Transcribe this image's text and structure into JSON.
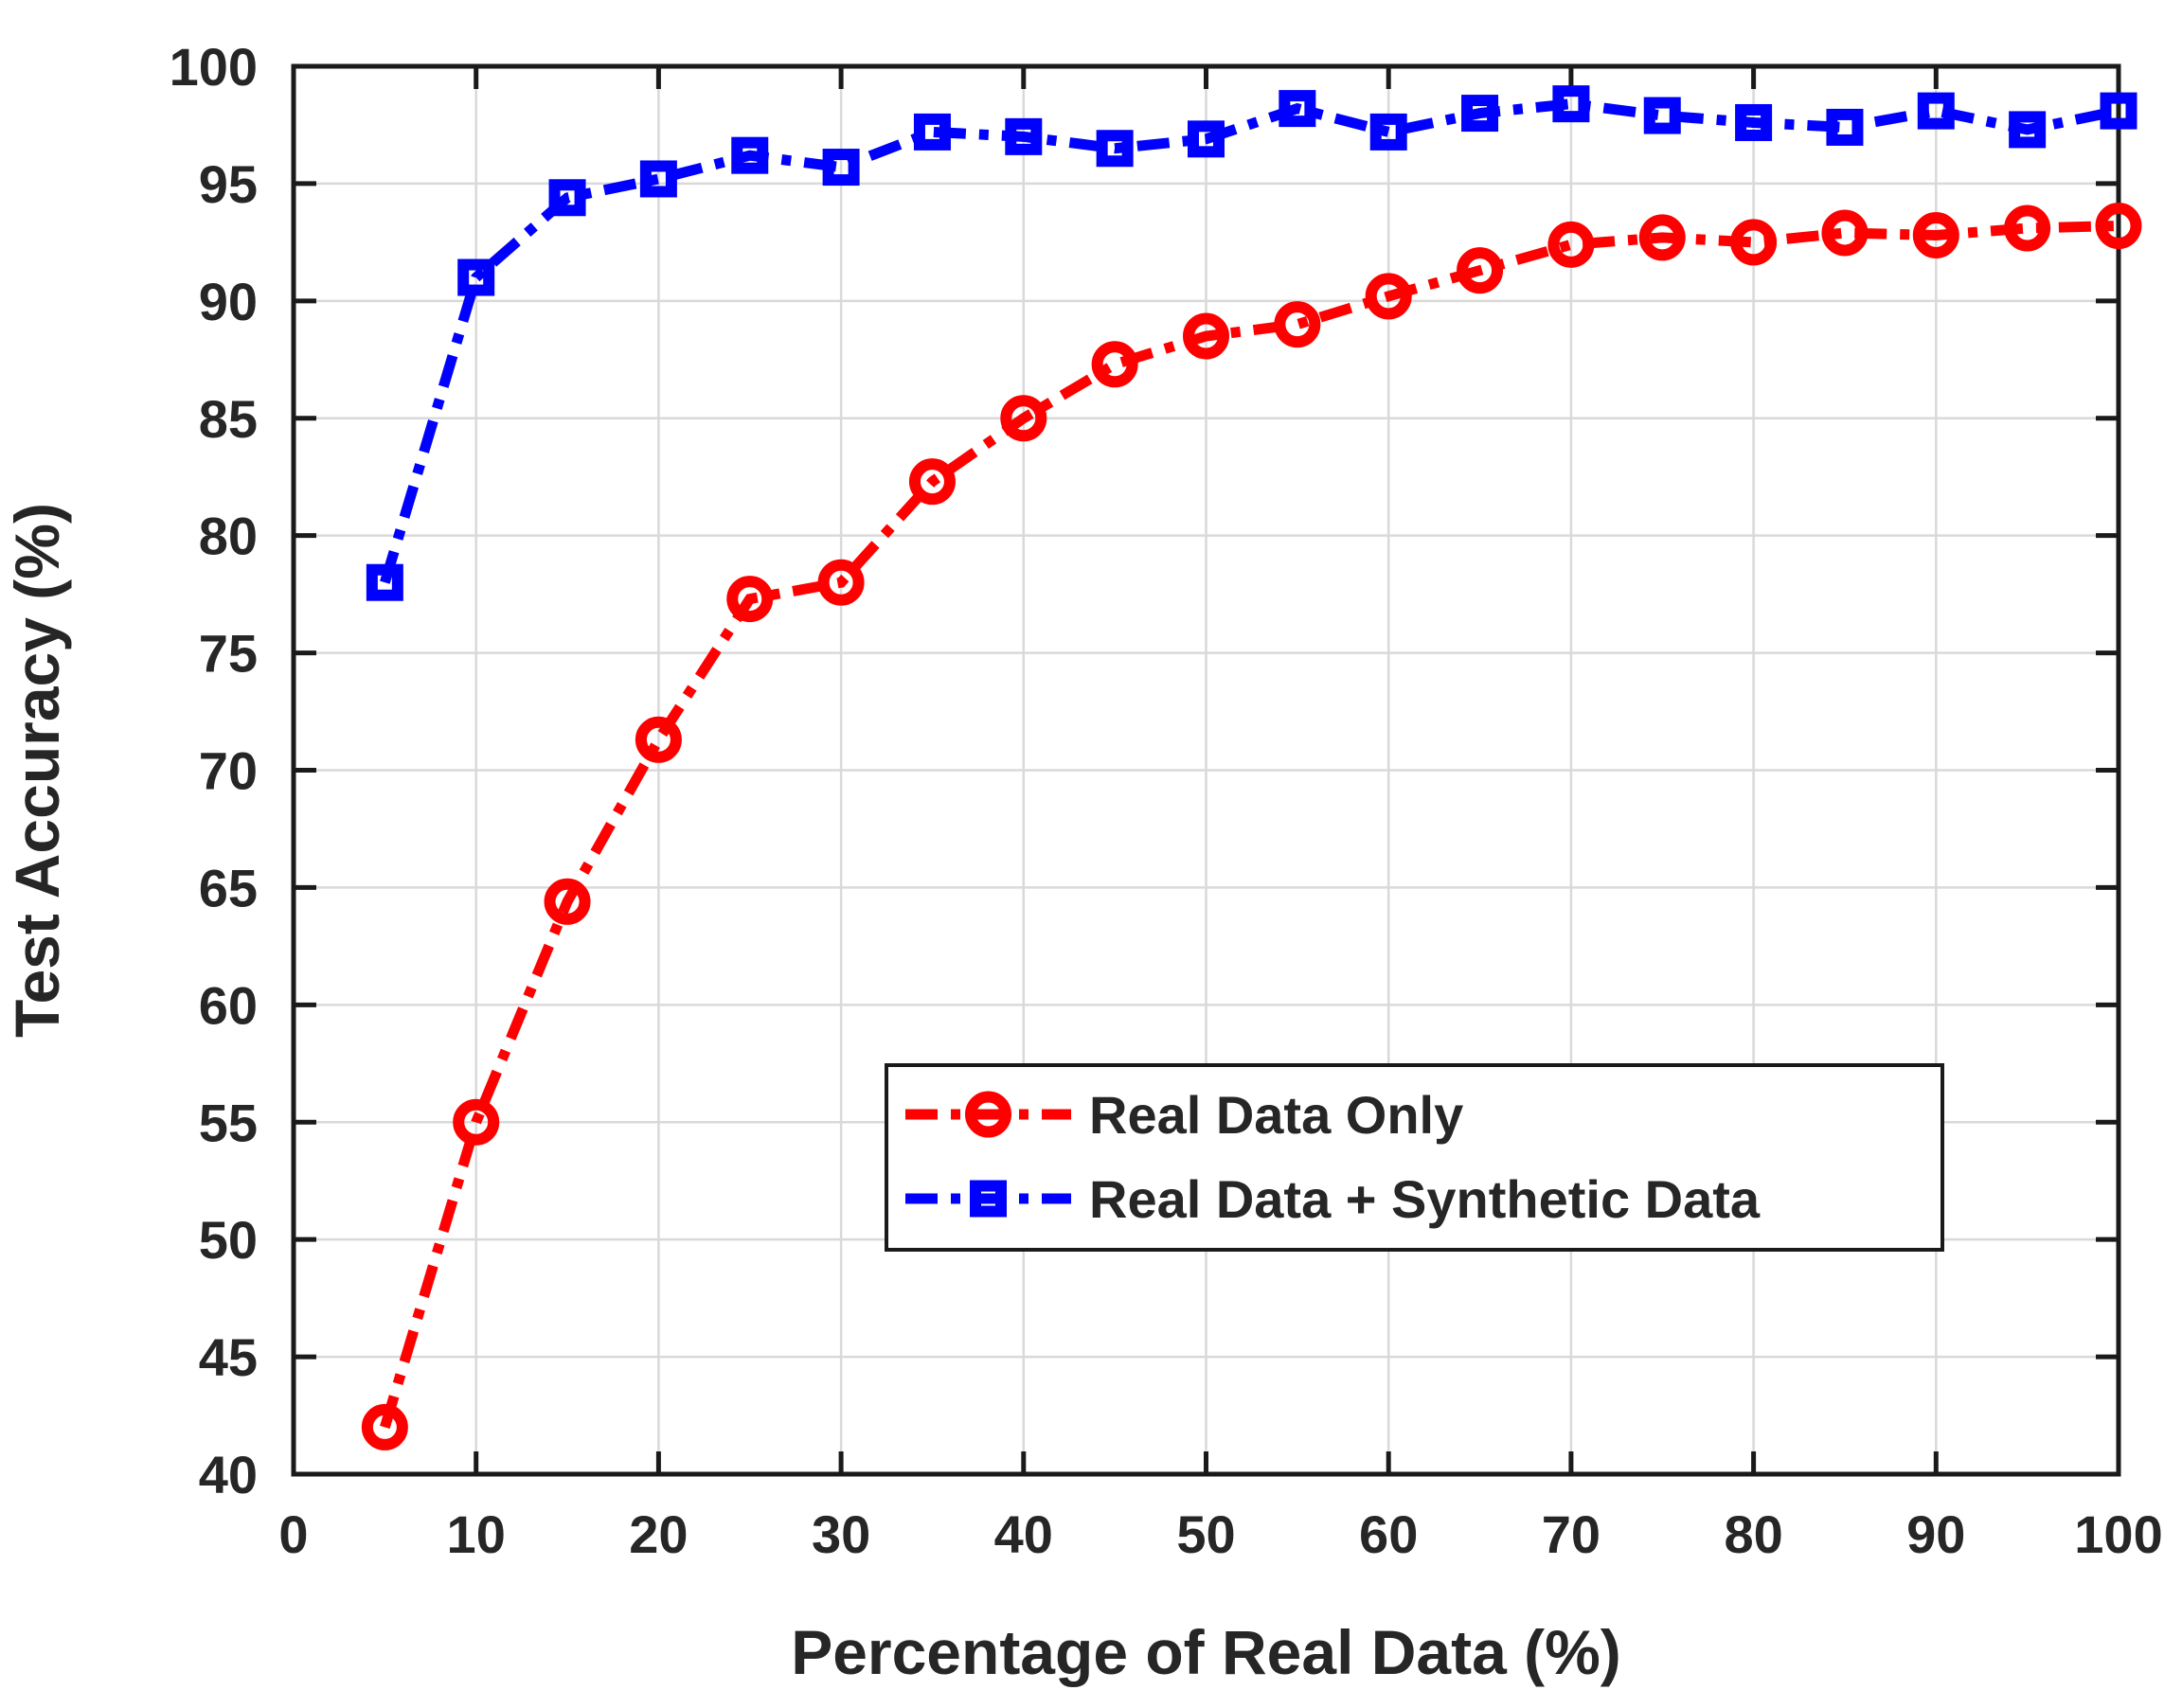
{
  "chart_data": {
    "type": "line",
    "title": "",
    "xlabel": "Percentage of Real Data (%)",
    "ylabel": "Test Accuracy (%)",
    "xlim": [
      0,
      100
    ],
    "ylim": [
      40,
      100
    ],
    "x_ticks": [
      0,
      10,
      20,
      30,
      40,
      50,
      60,
      70,
      80,
      90,
      100
    ],
    "y_ticks": [
      40,
      45,
      50,
      55,
      60,
      65,
      70,
      75,
      80,
      85,
      90,
      95,
      100
    ],
    "grid": true,
    "legend_position": "inside-lower-right",
    "x": [
      5,
      10,
      15,
      20,
      25,
      30,
      35,
      40,
      45,
      50,
      55,
      60,
      65,
      70,
      75,
      80,
      85,
      90,
      95,
      100
    ],
    "series": [
      {
        "name": "Real Data Only",
        "color": "#ff0000",
        "marker": "circle",
        "linestyle": "dash-dot",
        "values": [
          42.0,
          55.0,
          64.4,
          71.3,
          77.3,
          78.0,
          82.3,
          85.0,
          87.3,
          88.5,
          89.0,
          90.2,
          91.3,
          92.4,
          92.7,
          92.5,
          92.9,
          92.8,
          93.1,
          93.2
        ]
      },
      {
        "name": "Real Data + Synthetic Data",
        "color": "#0000ff",
        "marker": "square",
        "linestyle": "dash-dot",
        "values": [
          78.0,
          91.0,
          94.4,
          95.2,
          96.2,
          95.7,
          97.2,
          97.0,
          96.5,
          96.9,
          98.2,
          97.2,
          98.0,
          98.4,
          97.9,
          97.6,
          97.4,
          98.1,
          97.3,
          98.1
        ]
      }
    ]
  },
  "colors": {
    "background": "#ffffff",
    "axis": "#1a1a1a",
    "grid": "#d9d9d9",
    "text": "#262626",
    "legend_border": "#1a1a1a",
    "legend_background": "#ffffff"
  }
}
